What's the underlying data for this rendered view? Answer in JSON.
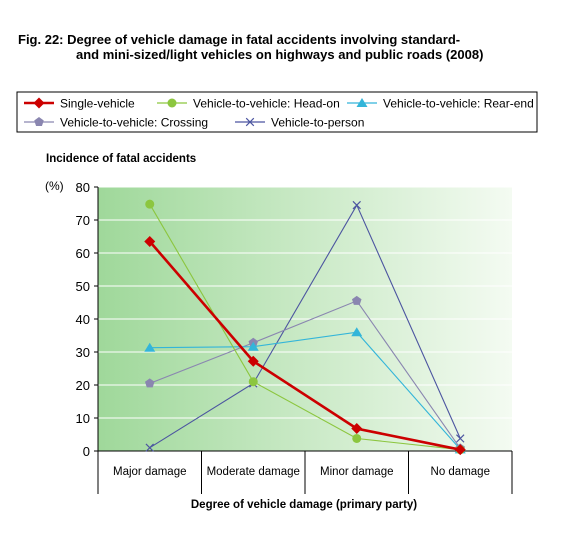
{
  "figure": {
    "title_line1": "Fig. 22: Degree of vehicle damage in fatal accidents involving standard-",
    "title_line2": "and mini-sized/light vehicles on highways and public roads (2008)"
  },
  "chart_data": {
    "type": "line",
    "ylabel": "Incidence of fatal accidents",
    "yunit": "(%)",
    "xlabel": "Degree of vehicle damage (primary party)",
    "ylim": [
      0,
      80
    ],
    "yticks": [
      0,
      10,
      20,
      30,
      40,
      50,
      60,
      70,
      80
    ],
    "categories": [
      "Major damage",
      "Moderate damage",
      "Minor damage",
      "No damage"
    ],
    "legend_position": "top",
    "series": [
      {
        "name": "Single-vehicle",
        "color": "#cc0000",
        "marker": "diamond",
        "values": [
          63.5,
          27.2,
          6.8,
          0.4
        ]
      },
      {
        "name": "Vehicle-to-vehicle: Head-on",
        "color": "#8cc63f",
        "marker": "circle",
        "values": [
          74.8,
          21.0,
          3.8,
          0.4
        ]
      },
      {
        "name": "Vehicle-to-vehicle: Rear-end",
        "color": "#33b5d9",
        "marker": "triangle",
        "values": [
          31.3,
          31.6,
          36.0,
          0.5
        ]
      },
      {
        "name": "Vehicle-to-vehicle: Crossing",
        "color": "#8a86b0",
        "marker": "pentagon",
        "values": [
          20.5,
          32.8,
          45.5,
          0.8
        ]
      },
      {
        "name": "Vehicle-to-person",
        "color": "#4c55a0",
        "marker": "x",
        "values": [
          1.0,
          20.5,
          74.5,
          3.8
        ]
      }
    ]
  }
}
